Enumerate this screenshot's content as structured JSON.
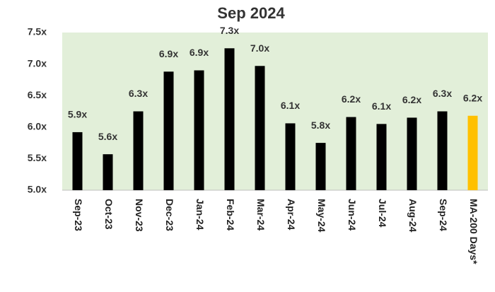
{
  "chart_data": {
    "type": "bar",
    "title": "Sep 2024",
    "categories": [
      "Sep-23",
      "Oct-23",
      "Nov-23",
      "Dec-23",
      "Jan-24",
      "Feb-24",
      "Mar-24",
      "Apr-24",
      "May-24",
      "Jun-24",
      "Jul-24",
      "Aug-24",
      "Sep-24",
      "MA-200 Days*"
    ],
    "values": [
      5.92,
      5.57,
      6.25,
      6.88,
      6.9,
      7.25,
      6.97,
      6.06,
      5.75,
      6.16,
      6.05,
      6.15,
      6.25,
      6.18
    ],
    "value_labels": [
      "5.9x",
      "5.6x",
      "6.3x",
      "6.9x",
      "6.9x",
      "7.3x",
      "7.0x",
      "6.1x",
      "5.8x",
      "6.2x",
      "6.1x",
      "6.2x",
      "6.3x",
      "6.2x"
    ],
    "colors": [
      "#000000",
      "#000000",
      "#000000",
      "#000000",
      "#000000",
      "#000000",
      "#000000",
      "#000000",
      "#000000",
      "#000000",
      "#000000",
      "#000000",
      "#000000",
      "#ffc000"
    ],
    "plot_background": "#e2efd9",
    "ylim": [
      5.0,
      7.5
    ],
    "yticks": [
      {
        "value": 5.0,
        "label": "5.0x"
      },
      {
        "value": 5.5,
        "label": "5.5x"
      },
      {
        "value": 6.0,
        "label": "6.0x"
      },
      {
        "value": 6.5,
        "label": "6.5x"
      },
      {
        "value": 7.0,
        "label": "7.0x"
      },
      {
        "value": 7.5,
        "label": "7.5x"
      }
    ],
    "grid": false
  }
}
